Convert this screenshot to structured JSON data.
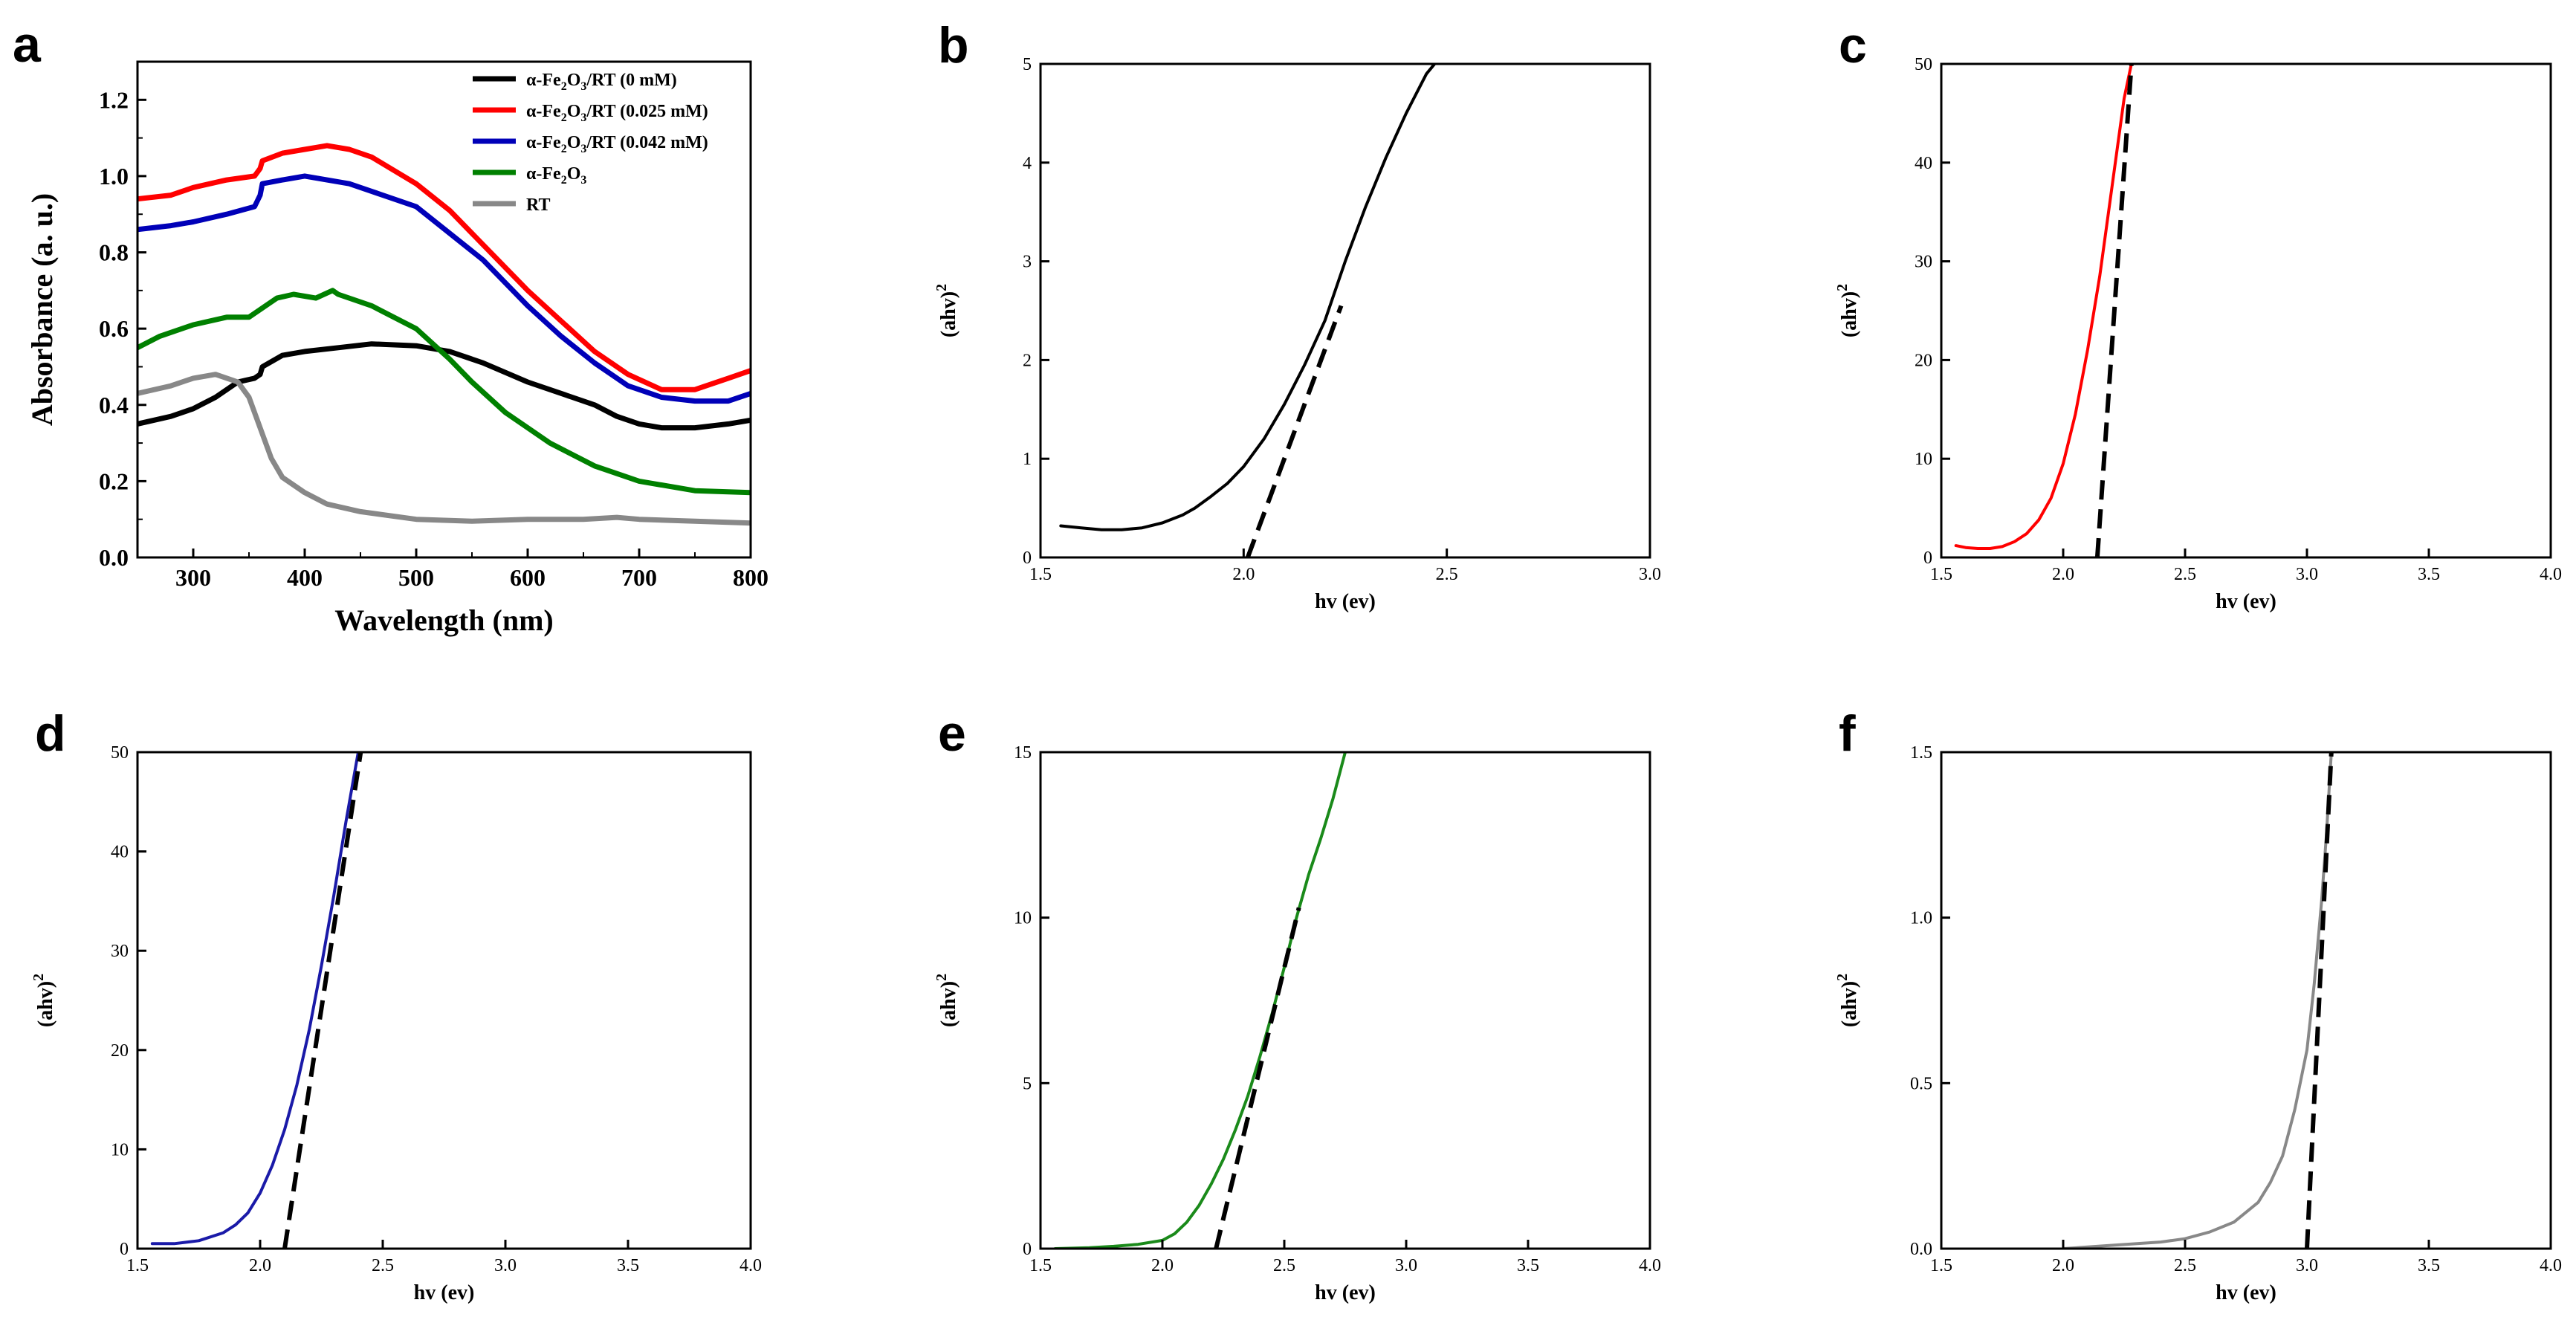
{
  "chart_data": [
    {
      "panel": "a",
      "type": "line",
      "title": "",
      "xlabel": "Wavelength (nm)",
      "ylabel": "Absorbance (a. u.)",
      "xlim": [
        250,
        800
      ],
      "ylim": [
        0,
        1.3
      ],
      "xticks": [
        300,
        400,
        500,
        600,
        700,
        800
      ],
      "yticks": [
        0.0,
        0.2,
        0.4,
        0.6,
        0.8,
        1.0,
        1.2
      ],
      "legend_position": "top-right",
      "series": [
        {
          "name": "α-Fe2O3/RT (0 mM)",
          "label_parts": [
            "α-Fe",
            "2",
            "O",
            "3",
            "/RT (0 mM)"
          ],
          "color": "#000000",
          "x": [
            250,
            280,
            300,
            320,
            340,
            355,
            360,
            362,
            380,
            400,
            430,
            460,
            500,
            530,
            560,
            600,
            640,
            660,
            680,
            700,
            720,
            750,
            780,
            800
          ],
          "y": [
            0.35,
            0.37,
            0.39,
            0.42,
            0.46,
            0.47,
            0.48,
            0.5,
            0.53,
            0.54,
            0.55,
            0.56,
            0.555,
            0.54,
            0.51,
            0.46,
            0.42,
            0.4,
            0.37,
            0.35,
            0.34,
            0.34,
            0.35,
            0.36
          ]
        },
        {
          "name": "α-Fe2O3/RT (0.025 mM)",
          "label_parts": [
            "α-Fe",
            "2",
            "O",
            "3",
            "/RT (0.025 mM)"
          ],
          "color": "#ff0000",
          "x": [
            250,
            280,
            300,
            330,
            355,
            360,
            362,
            380,
            400,
            420,
            440,
            460,
            500,
            530,
            560,
            600,
            630,
            660,
            690,
            720,
            750,
            780,
            800
          ],
          "y": [
            0.94,
            0.95,
            0.97,
            0.99,
            1.0,
            1.02,
            1.04,
            1.06,
            1.07,
            1.08,
            1.07,
            1.05,
            0.98,
            0.91,
            0.82,
            0.7,
            0.62,
            0.54,
            0.48,
            0.44,
            0.44,
            0.47,
            0.49
          ]
        },
        {
          "name": "α-Fe2O3/RT (0.042 mM)",
          "label_parts": [
            "α-Fe",
            "2",
            "O",
            "3",
            "/RT (0.042 mM)"
          ],
          "color": "#0000b8",
          "x": [
            250,
            280,
            300,
            330,
            355,
            360,
            362,
            380,
            400,
            420,
            440,
            460,
            500,
            530,
            560,
            600,
            630,
            660,
            690,
            720,
            750,
            780,
            800
          ],
          "y": [
            0.86,
            0.87,
            0.88,
            0.9,
            0.92,
            0.95,
            0.98,
            0.99,
            1.0,
            0.99,
            0.98,
            0.96,
            0.92,
            0.85,
            0.78,
            0.66,
            0.58,
            0.51,
            0.45,
            0.42,
            0.41,
            0.41,
            0.43
          ]
        },
        {
          "name": "α-Fe2O3",
          "label_parts": [
            "α-Fe",
            "2",
            "O",
            "3",
            ""
          ],
          "color": "#008000",
          "x": [
            250,
            270,
            300,
            330,
            350,
            360,
            375,
            390,
            410,
            425,
            430,
            460,
            500,
            530,
            550,
            580,
            620,
            660,
            700,
            750,
            800
          ],
          "y": [
            0.55,
            0.58,
            0.61,
            0.63,
            0.63,
            0.65,
            0.68,
            0.69,
            0.68,
            0.7,
            0.69,
            0.66,
            0.6,
            0.52,
            0.46,
            0.38,
            0.3,
            0.24,
            0.2,
            0.175,
            0.17
          ]
        },
        {
          "name": "RT",
          "label_parts": [
            "RT",
            "",
            "",
            "",
            ""
          ],
          "color": "#888888",
          "x": [
            250,
            280,
            300,
            320,
            340,
            350,
            360,
            370,
            380,
            400,
            420,
            450,
            500,
            550,
            600,
            650,
            680,
            700,
            750,
            800
          ],
          "y": [
            0.43,
            0.45,
            0.47,
            0.48,
            0.46,
            0.42,
            0.34,
            0.26,
            0.21,
            0.17,
            0.14,
            0.12,
            0.1,
            0.095,
            0.1,
            0.1,
            0.105,
            0.1,
            0.095,
            0.09
          ]
        }
      ]
    },
    {
      "panel": "b",
      "type": "line",
      "xlabel": "hv (ev)",
      "ylabel_main": "(ahv)",
      "ylabel_sup": "2",
      "xlim": [
        1.5,
        3.0
      ],
      "ylim": [
        0,
        5
      ],
      "xticks": [
        1.5,
        2.0,
        2.5,
        3.0
      ],
      "yticks": [
        0,
        1,
        2,
        3,
        4,
        5
      ],
      "xtick_labels": [
        "1.5",
        "2.0",
        "2.5",
        "3.0"
      ],
      "ytick_labels": [
        "0",
        "1",
        "2",
        "3",
        "4",
        "5"
      ],
      "curve": {
        "color": "#000000",
        "x": [
          1.55,
          1.6,
          1.65,
          1.7,
          1.75,
          1.8,
          1.85,
          1.88,
          1.92,
          1.96,
          2.0,
          2.05,
          2.1,
          2.15,
          2.2,
          2.25,
          2.3,
          2.35,
          2.4,
          2.45,
          2.47
        ],
        "y": [
          0.32,
          0.3,
          0.28,
          0.28,
          0.3,
          0.35,
          0.43,
          0.5,
          0.62,
          0.75,
          0.92,
          1.2,
          1.55,
          1.95,
          2.4,
          3.0,
          3.55,
          4.05,
          4.5,
          4.9,
          5.0
        ]
      },
      "fit_line": {
        "x": [
          2.01,
          2.24
        ],
        "y": [
          0,
          2.55
        ]
      },
      "band_gap_ev": 2.01
    },
    {
      "panel": "c",
      "type": "line",
      "xlabel": "hv (ev)",
      "ylabel_main": "(ahv)",
      "ylabel_sup": "2",
      "xlim": [
        1.5,
        4.0
      ],
      "ylim": [
        0,
        50
      ],
      "xticks": [
        1.5,
        2.0,
        2.5,
        3.0,
        3.5,
        4.0
      ],
      "yticks": [
        0,
        10,
        20,
        30,
        40,
        50
      ],
      "xtick_labels": [
        "1.5",
        "2.0",
        "2.5",
        "3.0",
        "3.5",
        "4.0"
      ],
      "ytick_labels": [
        "0",
        "10",
        "20",
        "30",
        "40",
        "50"
      ],
      "curve": {
        "color": "#ff0000",
        "x": [
          1.56,
          1.6,
          1.65,
          1.7,
          1.75,
          1.8,
          1.85,
          1.9,
          1.95,
          2.0,
          2.05,
          2.1,
          2.15,
          2.2,
          2.25,
          2.28
        ],
        "y": [
          1.2,
          1.0,
          0.9,
          0.9,
          1.1,
          1.6,
          2.4,
          3.8,
          6.0,
          9.5,
          14.5,
          21.0,
          28.5,
          37.5,
          46.5,
          50.0
        ]
      },
      "fit_line": {
        "x": [
          2.14,
          2.28
        ],
        "y": [
          0,
          50
        ]
      },
      "band_gap_ev": 2.14
    },
    {
      "panel": "d",
      "type": "line",
      "xlabel": "hv (ev)",
      "ylabel_main": "(ahv)",
      "ylabel_sup": "2",
      "xlim": [
        1.5,
        4.0
      ],
      "ylim": [
        0,
        50
      ],
      "xticks": [
        1.5,
        2.0,
        2.5,
        3.0,
        3.5,
        4.0
      ],
      "yticks": [
        0,
        10,
        20,
        30,
        40,
        50
      ],
      "xtick_labels": [
        "1.5",
        "2.0",
        "2.5",
        "3.0",
        "3.5",
        "4.0"
      ],
      "ytick_labels": [
        "0",
        "10",
        "20",
        "30",
        "40",
        "50"
      ],
      "curve": {
        "color": "#1a1aa8",
        "x": [
          1.56,
          1.65,
          1.75,
          1.85,
          1.9,
          1.95,
          2.0,
          2.05,
          2.1,
          2.15,
          2.2,
          2.25,
          2.3,
          2.35,
          2.4
        ],
        "y": [
          0.5,
          0.5,
          0.8,
          1.6,
          2.4,
          3.6,
          5.6,
          8.4,
          12.0,
          16.5,
          22.0,
          28.5,
          35.5,
          43.0,
          50.0
        ]
      },
      "fit_line": {
        "x": [
          2.1,
          2.41
        ],
        "y": [
          0,
          50
        ]
      },
      "band_gap_ev": 2.1
    },
    {
      "panel": "e",
      "type": "line",
      "xlabel": "hv (ev)",
      "ylabel_main": "(ahv)",
      "ylabel_sup": "2",
      "xlim": [
        1.5,
        4.0
      ],
      "ylim": [
        0,
        15
      ],
      "xticks": [
        1.5,
        2.0,
        2.5,
        3.0,
        3.5,
        4.0
      ],
      "yticks": [
        0,
        5,
        10,
        15
      ],
      "xtick_labels": [
        "1.5",
        "2.0",
        "2.5",
        "3.0",
        "3.5",
        "4.0"
      ],
      "ytick_labels": [
        "0",
        "5",
        "10",
        "15"
      ],
      "curve": {
        "color": "#1a8a1a",
        "x": [
          1.56,
          1.7,
          1.8,
          1.9,
          2.0,
          2.05,
          2.1,
          2.15,
          2.2,
          2.25,
          2.3,
          2.35,
          2.4,
          2.45,
          2.5,
          2.55,
          2.6,
          2.65,
          2.7,
          2.75
        ],
        "y": [
          0.0,
          0.03,
          0.07,
          0.13,
          0.25,
          0.45,
          0.8,
          1.3,
          1.95,
          2.7,
          3.6,
          4.6,
          5.8,
          7.1,
          8.5,
          10.0,
          11.3,
          12.4,
          13.6,
          15.0
        ]
      },
      "fit_line": {
        "x": [
          2.22,
          2.56
        ],
        "y": [
          0,
          10.3
        ]
      },
      "band_gap_ev": 2.22
    },
    {
      "panel": "f",
      "type": "line",
      "xlabel": "hv (ev)",
      "ylabel_main": "(ahv)",
      "ylabel_sup": "2",
      "xlim": [
        1.5,
        4.0
      ],
      "ylim": [
        0,
        1.5
      ],
      "xticks": [
        1.5,
        2.0,
        2.5,
        3.0,
        3.5,
        4.0
      ],
      "yticks": [
        0.0,
        0.5,
        1.0,
        1.5
      ],
      "xtick_labels": [
        "1.5",
        "2.0",
        "2.5",
        "3.0",
        "3.5",
        "4.0"
      ],
      "ytick_labels": [
        "0.0",
        "0.5",
        "1.0",
        "1.5"
      ],
      "curve": {
        "color": "#888888",
        "x": [
          2.0,
          2.2,
          2.4,
          2.5,
          2.6,
          2.7,
          2.8,
          2.85,
          2.9,
          2.95,
          3.0,
          3.03,
          3.06,
          3.08,
          3.1
        ],
        "y": [
          0.0,
          0.01,
          0.02,
          0.03,
          0.05,
          0.08,
          0.14,
          0.2,
          0.28,
          0.42,
          0.6,
          0.8,
          1.05,
          1.25,
          1.5
        ]
      },
      "fit_line": {
        "x": [
          3.0,
          3.1
        ],
        "y": [
          0,
          1.5
        ]
      },
      "band_gap_ev": 3.0
    }
  ]
}
